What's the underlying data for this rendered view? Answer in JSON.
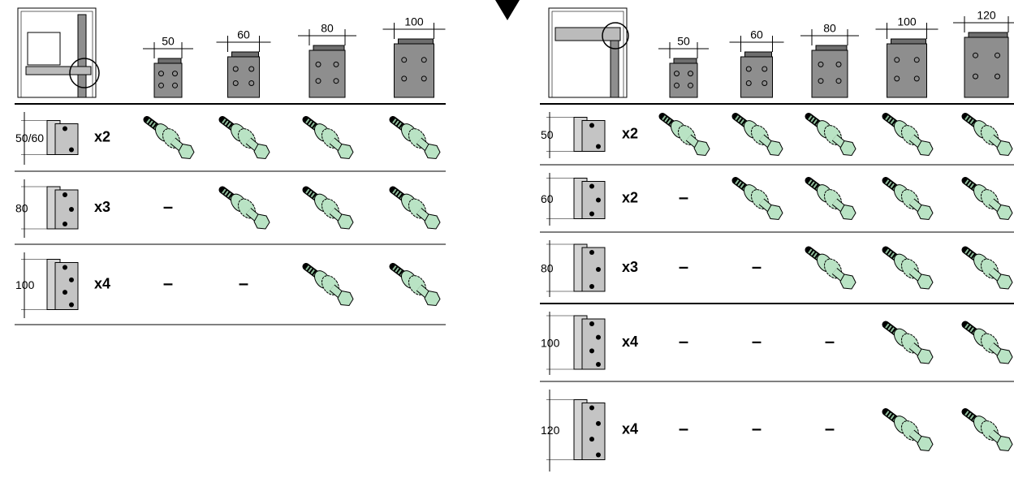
{
  "left_table": {
    "columns": [
      "50",
      "60",
      "80",
      "100"
    ],
    "rows": [
      {
        "height": "50/60",
        "quantity": "x2",
        "cells": [
          null,
          null,
          null,
          null
        ]
      },
      {
        "height": "80",
        "quantity": "x3",
        "cells": [
          "–",
          null,
          null,
          null
        ]
      },
      {
        "height": "100",
        "quantity": "x4",
        "cells": [
          "–",
          "–",
          null,
          null
        ]
      }
    ]
  },
  "right_table": {
    "columns": [
      "50",
      "60",
      "80",
      "100",
      "120"
    ],
    "rows": [
      {
        "height": "50",
        "quantity": "x2",
        "cells": [
          null,
          null,
          null,
          null,
          null
        ]
      },
      {
        "height": "60",
        "quantity": "x2",
        "cells": [
          "–",
          null,
          null,
          null,
          null
        ]
      },
      {
        "height": "80",
        "quantity": "x3",
        "cells": [
          "–",
          "–",
          null,
          null,
          null
        ]
      },
      {
        "height": "100",
        "quantity": "x4",
        "cells": [
          "–",
          "–",
          "–",
          null,
          null
        ]
      },
      {
        "height": "120",
        "quantity": "x4",
        "cells": [
          "–",
          "–",
          "–",
          null,
          null
        ]
      }
    ]
  }
}
